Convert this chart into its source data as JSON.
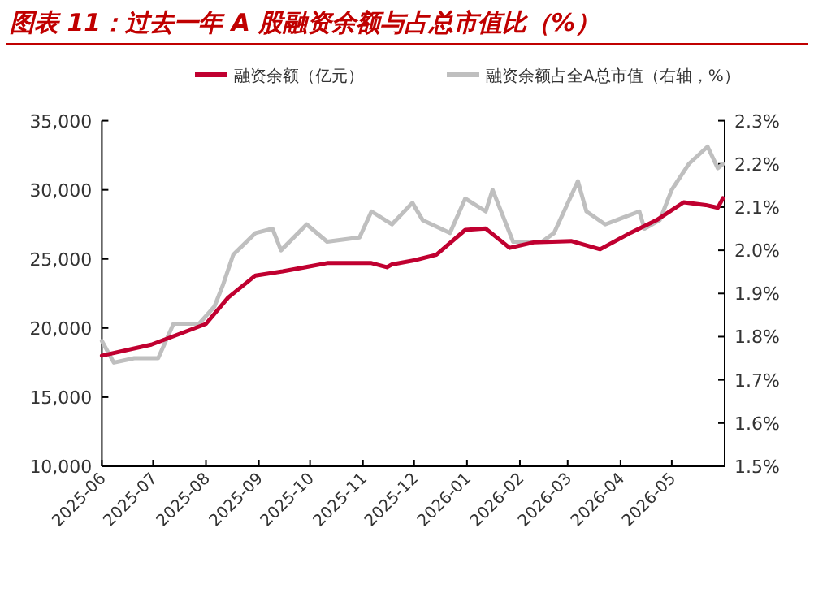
{
  "chart_data": {
    "type": "line",
    "title": "图表 11：过去一年 A 股融资余额与占总市值比（%）",
    "xlim": [
      "2025-06",
      "2026-06"
    ],
    "xticks": [
      "2025-06",
      "2025-07",
      "2025-08",
      "2025-09",
      "2025-10",
      "2025-11",
      "2025-12",
      "2026-01",
      "2026-02",
      "2026-03",
      "2026-04",
      "2026-05"
    ],
    "ylim": [
      10000,
      35000
    ],
    "yticks": [
      {
        "value": 10000,
        "label": "10,000"
      },
      {
        "value": 15000,
        "label": "15,000"
      },
      {
        "value": 20000,
        "label": "20,000"
      },
      {
        "value": 25000,
        "label": "25,000"
      },
      {
        "value": 30000,
        "label": "30,000"
      },
      {
        "value": 35000,
        "label": "35,000"
      }
    ],
    "y2lim": [
      1.5,
      2.3
    ],
    "y2ticks": [
      {
        "value": 1.5,
        "label": "1.5%"
      },
      {
        "value": 1.6,
        "label": "1.6%"
      },
      {
        "value": 1.7,
        "label": "1.7%"
      },
      {
        "value": 1.8,
        "label": "1.8%"
      },
      {
        "value": 1.9,
        "label": "1.9%"
      },
      {
        "value": 2.0,
        "label": "2.0%"
      },
      {
        "value": 2.1,
        "label": "2.1%"
      },
      {
        "value": 2.2,
        "label": "2.2%"
      },
      {
        "value": 2.3,
        "label": "2.3%"
      }
    ],
    "legend": "top",
    "grid": false,
    "series": [
      {
        "name": "融资余额（亿元）",
        "color": "#c00030",
        "x": [
          "2025-06-01",
          "2025-06-30",
          "2025-08-01",
          "2025-08-14",
          "2025-08-30",
          "2025-09-15",
          "2025-09-28",
          "2025-10-11",
          "2025-11-06",
          "2025-11-15",
          "2025-11-18",
          "2025-12-01",
          "2025-12-14",
          "2025-12-31",
          "2026-01-12",
          "2026-01-26",
          "2026-02-09",
          "2026-03-03",
          "2026-03-20",
          "2026-04-07",
          "2026-04-22",
          "2026-05-08",
          "2026-05-21",
          "2026-05-28",
          "2026-05-31"
        ],
        "values": [
          18000,
          18800,
          20300,
          22200,
          23800,
          24100,
          24400,
          24700,
          24700,
          24400,
          24600,
          24900,
          25300,
          27100,
          27200,
          25800,
          26200,
          26300,
          25700,
          26900,
          27800,
          29100,
          28900,
          28700,
          29400
        ]
      },
      {
        "name": "融资余额占全A总市值（右轴，%）",
        "color": "#bfbfbf",
        "axis": "y2",
        "x": [
          "2025-06-01",
          "2025-06-08",
          "2025-06-20",
          "2025-07-04",
          "2025-07-13",
          "2025-07-28",
          "2025-08-06",
          "2025-08-11",
          "2025-08-17",
          "2025-08-30",
          "2025-09-09",
          "2025-09-14",
          "2025-09-29",
          "2025-10-11",
          "2025-10-30",
          "2025-11-06",
          "2025-11-18",
          "2025-11-30",
          "2025-12-06",
          "2025-12-22",
          "2025-12-31",
          "2026-01-12",
          "2026-01-16",
          "2026-01-28",
          "2026-02-14",
          "2026-02-21",
          "2026-03-07",
          "2026-03-12",
          "2026-03-23",
          "2026-04-12",
          "2026-04-15",
          "2026-04-24",
          "2026-05-01",
          "2026-05-11",
          "2026-05-22",
          "2026-05-28",
          "2026-05-31"
        ],
        "values": [
          1.79,
          1.74,
          1.75,
          1.75,
          1.83,
          1.83,
          1.87,
          1.92,
          1.99,
          2.04,
          2.05,
          2.0,
          2.06,
          2.02,
          2.03,
          2.09,
          2.06,
          2.11,
          2.07,
          2.04,
          2.12,
          2.09,
          2.14,
          2.02,
          2.02,
          2.04,
          2.16,
          2.09,
          2.06,
          2.09,
          2.05,
          2.07,
          2.14,
          2.2,
          2.24,
          2.19,
          2.2
        ]
      }
    ]
  }
}
